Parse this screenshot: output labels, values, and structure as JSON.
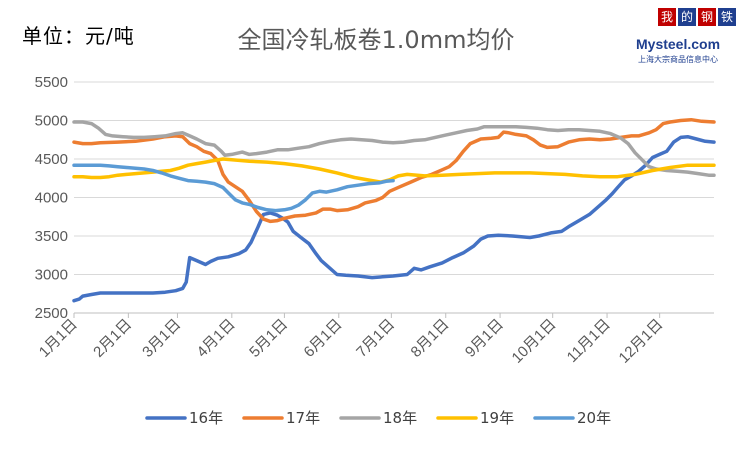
{
  "unit_label": "单位：元/吨",
  "logo": {
    "chars": [
      "我",
      "的",
      "钢",
      "铁"
    ],
    "text": "Mysteel.com",
    "subtitle": "上海大宗商品信息中心"
  },
  "chart_data": {
    "type": "line",
    "title": "全国冷轧板卷1.0mm均价",
    "xlabel": "",
    "ylabel": "",
    "ylim": [
      2500,
      5500
    ],
    "yticks": [
      2500,
      3000,
      3500,
      4000,
      4500,
      5000,
      5500
    ],
    "xlim": [
      0,
      365
    ],
    "xticks": [
      {
        "label": "1月1日",
        "day": 0
      },
      {
        "label": "2月1日",
        "day": 31
      },
      {
        "label": "3月1日",
        "day": 59
      },
      {
        "label": "4月1日",
        "day": 90
      },
      {
        "label": "5月1日",
        "day": 120
      },
      {
        "label": "6月1日",
        "day": 151
      },
      {
        "label": "7月1日",
        "day": 181
      },
      {
        "label": "8月1日",
        "day": 212
      },
      {
        "label": "9月1日",
        "day": 243
      },
      {
        "label": "10月1日",
        "day": 273
      },
      {
        "label": "11月1日",
        "day": 304
      },
      {
        "label": "12月1日",
        "day": 334
      }
    ],
    "grid": true,
    "legend_position": "bottom",
    "series": [
      {
        "name": "16年",
        "color": "#4472c4",
        "points": [
          [
            0,
            2660
          ],
          [
            3,
            2680
          ],
          [
            5,
            2720
          ],
          [
            10,
            2740
          ],
          [
            15,
            2760
          ],
          [
            25,
            2760
          ],
          [
            35,
            2760
          ],
          [
            45,
            2760
          ],
          [
            52,
            2770
          ],
          [
            58,
            2790
          ],
          [
            62,
            2820
          ],
          [
            64,
            2900
          ],
          [
            66,
            3220
          ],
          [
            70,
            3180
          ],
          [
            75,
            3130
          ],
          [
            78,
            3170
          ],
          [
            82,
            3210
          ],
          [
            88,
            3230
          ],
          [
            94,
            3270
          ],
          [
            98,
            3320
          ],
          [
            101,
            3420
          ],
          [
            103,
            3520
          ],
          [
            105,
            3620
          ],
          [
            108,
            3780
          ],
          [
            112,
            3800
          ],
          [
            116,
            3770
          ],
          [
            119,
            3730
          ],
          [
            122,
            3680
          ],
          [
            125,
            3560
          ],
          [
            130,
            3470
          ],
          [
            134,
            3400
          ],
          [
            138,
            3270
          ],
          [
            141,
            3180
          ],
          [
            146,
            3080
          ],
          [
            150,
            3000
          ],
          [
            155,
            2990
          ],
          [
            162,
            2980
          ],
          [
            170,
            2960
          ],
          [
            176,
            2970
          ],
          [
            182,
            2980
          ],
          [
            190,
            3000
          ],
          [
            194,
            3080
          ],
          [
            198,
            3060
          ],
          [
            203,
            3100
          ],
          [
            210,
            3150
          ],
          [
            216,
            3220
          ],
          [
            222,
            3280
          ],
          [
            228,
            3370
          ],
          [
            232,
            3460
          ],
          [
            236,
            3500
          ],
          [
            242,
            3510
          ],
          [
            250,
            3500
          ],
          [
            260,
            3480
          ],
          [
            265,
            3500
          ],
          [
            272,
            3540
          ],
          [
            278,
            3560
          ],
          [
            282,
            3620
          ],
          [
            288,
            3700
          ],
          [
            294,
            3780
          ],
          [
            298,
            3860
          ],
          [
            303,
            3960
          ],
          [
            307,
            4050
          ],
          [
            310,
            4130
          ],
          [
            314,
            4230
          ],
          [
            318,
            4280
          ],
          [
            322,
            4340
          ],
          [
            326,
            4420
          ],
          [
            330,
            4520
          ],
          [
            334,
            4560
          ],
          [
            338,
            4600
          ],
          [
            342,
            4720
          ],
          [
            346,
            4780
          ],
          [
            350,
            4790
          ],
          [
            355,
            4760
          ],
          [
            360,
            4730
          ],
          [
            365,
            4720
          ]
        ]
      },
      {
        "name": "17年",
        "color": "#ed7d31",
        "points": [
          [
            0,
            4720
          ],
          [
            5,
            4700
          ],
          [
            10,
            4700
          ],
          [
            15,
            4710
          ],
          [
            25,
            4720
          ],
          [
            35,
            4730
          ],
          [
            45,
            4760
          ],
          [
            52,
            4790
          ],
          [
            58,
            4800
          ],
          [
            62,
            4790
          ],
          [
            66,
            4700
          ],
          [
            70,
            4660
          ],
          [
            74,
            4600
          ],
          [
            78,
            4570
          ],
          [
            82,
            4480
          ],
          [
            85,
            4300
          ],
          [
            88,
            4200
          ],
          [
            92,
            4140
          ],
          [
            96,
            4080
          ],
          [
            100,
            3960
          ],
          [
            104,
            3820
          ],
          [
            108,
            3720
          ],
          [
            112,
            3690
          ],
          [
            116,
            3700
          ],
          [
            120,
            3730
          ],
          [
            126,
            3760
          ],
          [
            132,
            3770
          ],
          [
            138,
            3800
          ],
          [
            142,
            3850
          ],
          [
            146,
            3850
          ],
          [
            150,
            3830
          ],
          [
            156,
            3840
          ],
          [
            162,
            3880
          ],
          [
            166,
            3930
          ],
          [
            172,
            3960
          ],
          [
            176,
            4000
          ],
          [
            180,
            4080
          ],
          [
            186,
            4140
          ],
          [
            192,
            4200
          ],
          [
            198,
            4260
          ],
          [
            204,
            4300
          ],
          [
            210,
            4360
          ],
          [
            214,
            4400
          ],
          [
            218,
            4480
          ],
          [
            222,
            4600
          ],
          [
            226,
            4700
          ],
          [
            232,
            4760
          ],
          [
            238,
            4770
          ],
          [
            242,
            4780
          ],
          [
            245,
            4850
          ],
          [
            248,
            4840
          ],
          [
            252,
            4820
          ],
          [
            258,
            4800
          ],
          [
            262,
            4750
          ],
          [
            266,
            4680
          ],
          [
            270,
            4650
          ],
          [
            276,
            4660
          ],
          [
            282,
            4720
          ],
          [
            288,
            4750
          ],
          [
            294,
            4760
          ],
          [
            300,
            4750
          ],
          [
            306,
            4760
          ],
          [
            312,
            4780
          ],
          [
            318,
            4800
          ],
          [
            322,
            4800
          ],
          [
            328,
            4840
          ],
          [
            332,
            4880
          ],
          [
            336,
            4960
          ],
          [
            340,
            4980
          ],
          [
            346,
            5000
          ],
          [
            352,
            5010
          ],
          [
            358,
            4990
          ],
          [
            365,
            4980
          ]
        ]
      },
      {
        "name": "18年",
        "color": "#a5a5a5",
        "points": [
          [
            0,
            4980
          ],
          [
            5,
            4980
          ],
          [
            10,
            4960
          ],
          [
            14,
            4900
          ],
          [
            18,
            4820
          ],
          [
            22,
            4800
          ],
          [
            28,
            4790
          ],
          [
            34,
            4780
          ],
          [
            40,
            4780
          ],
          [
            46,
            4790
          ],
          [
            52,
            4800
          ],
          [
            58,
            4830
          ],
          [
            62,
            4840
          ],
          [
            66,
            4800
          ],
          [
            70,
            4760
          ],
          [
            75,
            4700
          ],
          [
            80,
            4680
          ],
          [
            84,
            4600
          ],
          [
            86,
            4550
          ],
          [
            90,
            4560
          ],
          [
            96,
            4590
          ],
          [
            100,
            4560
          ],
          [
            104,
            4570
          ],
          [
            110,
            4590
          ],
          [
            116,
            4620
          ],
          [
            122,
            4620
          ],
          [
            128,
            4640
          ],
          [
            134,
            4660
          ],
          [
            140,
            4700
          ],
          [
            146,
            4730
          ],
          [
            152,
            4750
          ],
          [
            158,
            4760
          ],
          [
            164,
            4750
          ],
          [
            170,
            4740
          ],
          [
            176,
            4720
          ],
          [
            182,
            4710
          ],
          [
            188,
            4720
          ],
          [
            194,
            4740
          ],
          [
            200,
            4750
          ],
          [
            206,
            4780
          ],
          [
            212,
            4810
          ],
          [
            218,
            4840
          ],
          [
            224,
            4870
          ],
          [
            230,
            4890
          ],
          [
            234,
            4920
          ],
          [
            240,
            4920
          ],
          [
            246,
            4920
          ],
          [
            252,
            4920
          ],
          [
            258,
            4910
          ],
          [
            264,
            4900
          ],
          [
            270,
            4880
          ],
          [
            276,
            4870
          ],
          [
            282,
            4880
          ],
          [
            288,
            4880
          ],
          [
            294,
            4870
          ],
          [
            300,
            4860
          ],
          [
            306,
            4830
          ],
          [
            312,
            4770
          ],
          [
            316,
            4700
          ],
          [
            320,
            4580
          ],
          [
            324,
            4490
          ],
          [
            328,
            4400
          ],
          [
            332,
            4370
          ],
          [
            338,
            4350
          ],
          [
            344,
            4340
          ],
          [
            350,
            4330
          ],
          [
            356,
            4310
          ],
          [
            362,
            4290
          ],
          [
            365,
            4290
          ]
        ]
      },
      {
        "name": "19年",
        "color": "#ffc000",
        "points": [
          [
            0,
            4270
          ],
          [
            5,
            4270
          ],
          [
            10,
            4260
          ],
          [
            15,
            4260
          ],
          [
            20,
            4270
          ],
          [
            25,
            4290
          ],
          [
            30,
            4300
          ],
          [
            35,
            4310
          ],
          [
            40,
            4320
          ],
          [
            45,
            4330
          ],
          [
            50,
            4340
          ],
          [
            55,
            4350
          ],
          [
            60,
            4380
          ],
          [
            65,
            4420
          ],
          [
            70,
            4440
          ],
          [
            75,
            4460
          ],
          [
            80,
            4480
          ],
          [
            85,
            4500
          ],
          [
            90,
            4490
          ],
          [
            100,
            4470
          ],
          [
            110,
            4460
          ],
          [
            120,
            4440
          ],
          [
            130,
            4410
          ],
          [
            140,
            4370
          ],
          [
            150,
            4320
          ],
          [
            160,
            4260
          ],
          [
            170,
            4220
          ],
          [
            175,
            4200
          ],
          [
            180,
            4230
          ],
          [
            185,
            4280
          ],
          [
            190,
            4300
          ],
          [
            200,
            4280
          ],
          [
            210,
            4290
          ],
          [
            220,
            4300
          ],
          [
            230,
            4310
          ],
          [
            240,
            4320
          ],
          [
            250,
            4320
          ],
          [
            260,
            4320
          ],
          [
            270,
            4310
          ],
          [
            280,
            4300
          ],
          [
            290,
            4280
          ],
          [
            300,
            4270
          ],
          [
            310,
            4270
          ],
          [
            320,
            4300
          ],
          [
            330,
            4350
          ],
          [
            340,
            4390
          ],
          [
            350,
            4420
          ],
          [
            360,
            4420
          ],
          [
            365,
            4420
          ]
        ]
      },
      {
        "name": "20年",
        "color": "#5b9bd5",
        "points": [
          [
            0,
            4420
          ],
          [
            5,
            4420
          ],
          [
            10,
            4420
          ],
          [
            15,
            4420
          ],
          [
            20,
            4410
          ],
          [
            25,
            4400
          ],
          [
            30,
            4390
          ],
          [
            35,
            4380
          ],
          [
            40,
            4370
          ],
          [
            45,
            4350
          ],
          [
            50,
            4320
          ],
          [
            55,
            4280
          ],
          [
            60,
            4250
          ],
          [
            65,
            4220
          ],
          [
            70,
            4210
          ],
          [
            75,
            4200
          ],
          [
            80,
            4180
          ],
          [
            85,
            4130
          ],
          [
            88,
            4060
          ],
          [
            92,
            3970
          ],
          [
            96,
            3930
          ],
          [
            100,
            3910
          ],
          [
            105,
            3870
          ],
          [
            110,
            3840
          ],
          [
            115,
            3830
          ],
          [
            120,
            3840
          ],
          [
            124,
            3860
          ],
          [
            128,
            3900
          ],
          [
            132,
            3970
          ],
          [
            136,
            4060
          ],
          [
            140,
            4080
          ],
          [
            144,
            4070
          ],
          [
            150,
            4100
          ],
          [
            156,
            4140
          ],
          [
            162,
            4160
          ],
          [
            168,
            4180
          ],
          [
            174,
            4190
          ],
          [
            178,
            4210
          ],
          [
            182,
            4220
          ]
        ]
      }
    ]
  }
}
